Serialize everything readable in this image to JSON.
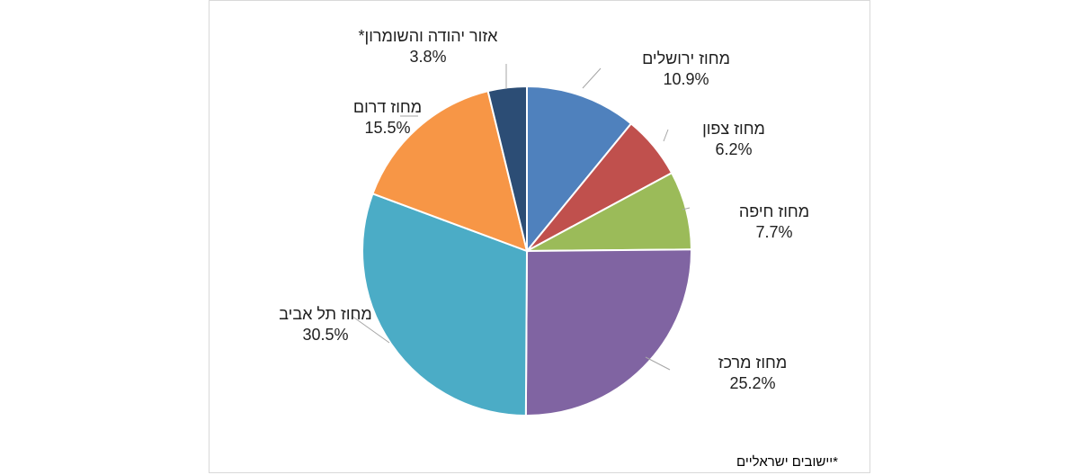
{
  "chart_data": {
    "type": "pie",
    "slices": [
      {
        "label": "מחוז ירושלים",
        "value": 10.9,
        "value_label": "10.9%",
        "color": "#4F81BD"
      },
      {
        "label": "מחוז צפון",
        "value": 6.2,
        "value_label": "6.2%",
        "color": "#C0504D"
      },
      {
        "label": "מחוז חיפה",
        "value": 7.7,
        "value_label": "7.7%",
        "color": "#9BBB59"
      },
      {
        "label": "מחוז מרכז",
        "value": 25.2,
        "value_label": "25.2%",
        "color": "#8064A2"
      },
      {
        "label": "מחוז תל אביב",
        "value": 30.5,
        "value_label": "30.5%",
        "color": "#4BACC6"
      },
      {
        "label": "מחוז דרום",
        "value": 15.5,
        "value_label": "15.5%",
        "color": "#F79646"
      },
      {
        "label": "אזור יהודה והשומרון*",
        "value": 3.8,
        "value_label": "3.8%",
        "color": "#2C4D75"
      }
    ],
    "start_angle": "top, clockwise",
    "legend": "none"
  },
  "footnote": "*יישובים  ישראליים"
}
